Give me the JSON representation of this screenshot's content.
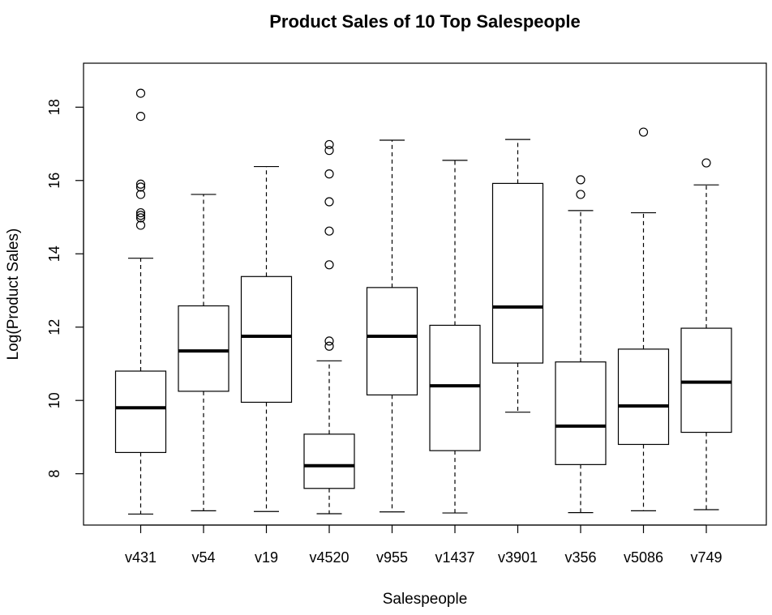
{
  "chart_data": {
    "type": "boxplot",
    "title": "Product Sales of 10 Top Salespeople",
    "xlabel": "Salespeople",
    "ylabel": "Log(Product Sales)",
    "ylim": [
      6.6,
      19.2
    ],
    "yticks": [
      8,
      10,
      12,
      14,
      16,
      18
    ],
    "grid": false,
    "legend": "none",
    "categories": [
      "v431",
      "v54",
      "v19",
      "v4520",
      "v955",
      "v1437",
      "v3901",
      "v356",
      "v5086",
      "v749"
    ],
    "boxes": [
      {
        "name": "v431",
        "whisker_low": 6.9,
        "q1": 8.58,
        "median": 9.8,
        "q3": 10.8,
        "whisker_high": 13.88,
        "outliers": [
          14.78,
          14.98,
          15.05,
          15.12,
          15.62,
          15.82,
          15.9,
          17.75,
          18.38
        ]
      },
      {
        "name": "v54",
        "whisker_low": 6.99,
        "q1": 10.25,
        "median": 11.35,
        "q3": 12.58,
        "whisker_high": 15.62,
        "outliers": []
      },
      {
        "name": "v19",
        "whisker_low": 6.97,
        "q1": 9.95,
        "median": 11.75,
        "q3": 13.38,
        "whisker_high": 16.38,
        "outliers": []
      },
      {
        "name": "v4520",
        "whisker_low": 6.91,
        "q1": 7.6,
        "median": 8.22,
        "q3": 9.08,
        "whisker_high": 11.08,
        "outliers": [
          11.48,
          11.62,
          13.7,
          14.62,
          15.42,
          16.18,
          16.82,
          16.98
        ]
      },
      {
        "name": "v955",
        "whisker_low": 6.96,
        "q1": 10.15,
        "median": 11.75,
        "q3": 13.08,
        "whisker_high": 17.1,
        "outliers": []
      },
      {
        "name": "v1437",
        "whisker_low": 6.93,
        "q1": 8.63,
        "median": 10.4,
        "q3": 12.05,
        "whisker_high": 16.55,
        "outliers": []
      },
      {
        "name": "v3901",
        "whisker_low": 9.68,
        "q1": 11.02,
        "median": 12.55,
        "q3": 15.92,
        "whisker_high": 17.12,
        "outliers": []
      },
      {
        "name": "v356",
        "whisker_low": 6.94,
        "q1": 8.25,
        "median": 9.3,
        "q3": 11.05,
        "whisker_high": 15.18,
        "outliers": [
          15.62,
          16.02
        ]
      },
      {
        "name": "v5086",
        "whisker_low": 6.99,
        "q1": 8.8,
        "median": 9.85,
        "q3": 11.4,
        "whisker_high": 15.12,
        "outliers": [
          17.32
        ]
      },
      {
        "name": "v749",
        "whisker_low": 7.02,
        "q1": 9.13,
        "median": 10.5,
        "q3": 11.97,
        "whisker_high": 15.88,
        "outliers": [
          16.48
        ]
      }
    ]
  }
}
